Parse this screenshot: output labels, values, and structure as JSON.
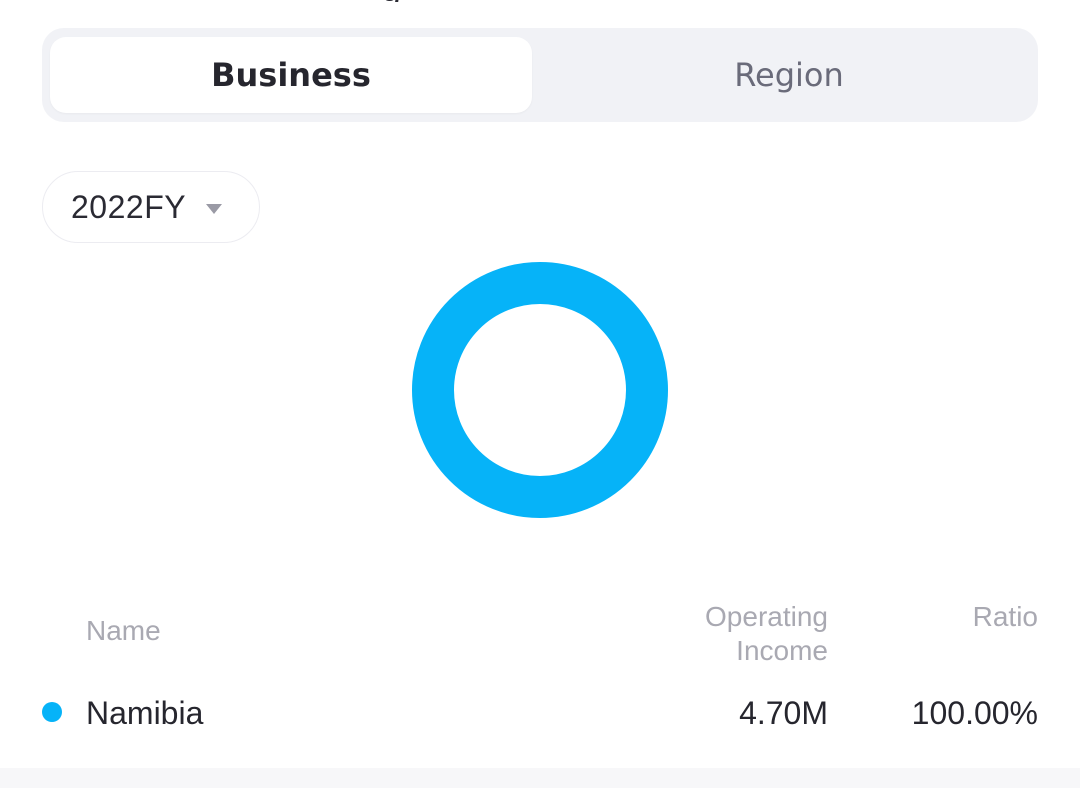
{
  "tabs": [
    {
      "label": "Business",
      "active": true
    },
    {
      "label": "Region",
      "active": false
    }
  ],
  "period": {
    "selected": "2022FY"
  },
  "colors": {
    "accent": "#06b3f8"
  },
  "table": {
    "headers": {
      "name": "Name",
      "income": "Operating Income",
      "ratio": "Ratio"
    },
    "rows": [
      {
        "name": "Namibia",
        "income": "4.70M",
        "ratio": "100.00%",
        "color": "#06b3f8"
      }
    ]
  },
  "chart_data": {
    "type": "pie",
    "categories": [
      "Namibia"
    ],
    "values": [
      100.0
    ]
  }
}
